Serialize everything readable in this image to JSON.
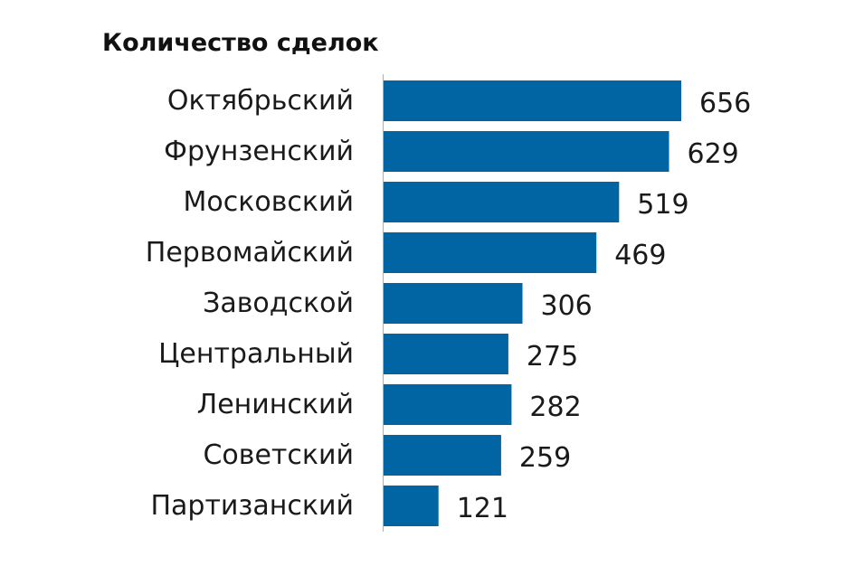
{
  "chart_data": {
    "type": "bar",
    "orientation": "horizontal",
    "title": "Количество сделок",
    "categories": [
      "Октябрьский",
      "Фрунзенский",
      "Московский",
      "Первомайский",
      "Заводской",
      "Центральный",
      "Ленинский",
      "Советский",
      "Партизанский"
    ],
    "values": [
      656,
      629,
      519,
      469,
      306,
      275,
      282,
      259,
      121
    ],
    "xlim": [
      0,
      656
    ],
    "grid": false,
    "legend": "none",
    "bar_color": "#0065a2",
    "axis_color": "#b0b0b0"
  }
}
